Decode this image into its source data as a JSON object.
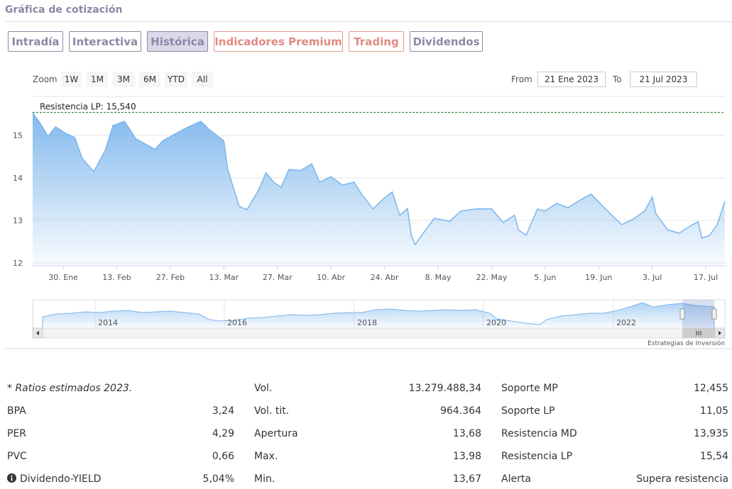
{
  "header": {
    "title": "Gráfica de cotización"
  },
  "tabs": [
    "Intradía",
    "Interactiva",
    "Histórica",
    "Indicadores Premium",
    "Trading",
    "Dividendos"
  ],
  "zoom": {
    "label": "Zoom",
    "buttons": [
      "1W",
      "1M",
      "3M",
      "6M",
      "YTD",
      "All"
    ],
    "active": "6M"
  },
  "range": {
    "from_label": "From",
    "from": "21 Ene 2023",
    "to_label": "To",
    "to": "21 Jul 2023"
  },
  "chart_data": {
    "type": "area",
    "x": [
      "2023-01-22",
      "2023-01-24",
      "2023-01-26",
      "2023-01-28",
      "2023-01-31",
      "2023-02-02",
      "2023-02-04",
      "2023-02-07",
      "2023-02-10",
      "2023-02-12",
      "2023-02-15",
      "2023-02-18",
      "2023-02-23",
      "2023-02-25",
      "2023-03-03",
      "2023-03-07",
      "2023-03-09",
      "2023-03-13",
      "2023-03-14",
      "2023-03-17",
      "2023-03-19",
      "2023-03-22",
      "2023-03-24",
      "2023-03-26",
      "2023-03-28",
      "2023-03-30",
      "2023-04-02",
      "2023-04-05",
      "2023-04-07",
      "2023-04-10",
      "2023-04-13",
      "2023-04-16",
      "2023-04-18",
      "2023-04-21",
      "2023-04-24",
      "2023-04-26",
      "2023-04-28",
      "2023-04-30",
      "2023-05-01",
      "2023-05-02",
      "2023-05-06",
      "2023-05-07",
      "2023-05-11",
      "2023-05-14",
      "2023-05-18",
      "2023-05-22",
      "2023-05-25",
      "2023-05-28",
      "2023-05-29",
      "2023-05-31",
      "2023-06-03",
      "2023-06-05",
      "2023-06-08",
      "2023-06-11",
      "2023-06-14",
      "2023-06-17",
      "2023-06-21",
      "2023-06-25",
      "2023-06-28",
      "2023-07-01",
      "2023-07-03",
      "2023-07-04",
      "2023-07-07",
      "2023-07-10",
      "2023-07-13",
      "2023-07-15",
      "2023-07-16",
      "2023-07-18",
      "2023-07-20",
      "2023-07-22"
    ],
    "series": [
      {
        "name": "Cotización",
        "color": "#7cb5ec",
        "values": [
          15.53,
          15.28,
          14.98,
          15.2,
          15.03,
          14.95,
          14.45,
          14.15,
          14.65,
          15.23,
          15.33,
          14.92,
          14.67,
          14.87,
          15.17,
          15.33,
          15.15,
          14.87,
          14.2,
          13.33,
          13.25,
          13.7,
          14.12,
          13.9,
          13.78,
          14.2,
          14.17,
          14.33,
          13.9,
          14.03,
          13.83,
          13.9,
          13.62,
          13.27,
          13.53,
          13.67,
          13.12,
          13.28,
          12.65,
          12.43,
          12.93,
          13.05,
          12.98,
          13.22,
          13.27,
          13.27,
          12.95,
          13.12,
          12.78,
          12.65,
          13.27,
          13.22,
          13.4,
          13.3,
          13.47,
          13.62,
          13.25,
          12.9,
          13.03,
          13.22,
          13.55,
          13.15,
          12.78,
          12.7,
          12.87,
          12.97,
          12.58,
          12.65,
          12.9,
          13.45
        ]
      }
    ],
    "xlim": [
      "2023-01-22",
      "2023-07-22"
    ],
    "xticks": [
      {
        "value": "2023-01-30",
        "label": "30. Ene"
      },
      {
        "value": "2023-02-13",
        "label": "13. Feb"
      },
      {
        "value": "2023-02-27",
        "label": "27. Feb"
      },
      {
        "value": "2023-03-13",
        "label": "13. Mar"
      },
      {
        "value": "2023-03-27",
        "label": "27. Mar"
      },
      {
        "value": "2023-04-10",
        "label": "10. Abr"
      },
      {
        "value": "2023-04-24",
        "label": "24. Abr"
      },
      {
        "value": "2023-05-08",
        "label": "8. May"
      },
      {
        "value": "2023-05-22",
        "label": "22. May"
      },
      {
        "value": "2023-06-05",
        "label": "5. Jun"
      },
      {
        "value": "2023-06-19",
        "label": "19. Jun"
      },
      {
        "value": "2023-07-03",
        "label": "3. Jul"
      },
      {
        "value": "2023-07-17",
        "label": "17. Jul"
      }
    ],
    "ylim": [
      12,
      16
    ],
    "yticks": [
      12,
      13,
      14,
      15
    ],
    "grid": true,
    "annotation": {
      "text": "Resistencia LP: 15,540",
      "value": 15.54,
      "color": "#1e6b1e"
    }
  },
  "navigator": {
    "labels": [
      "2014",
      "2016",
      "2018",
      "2020",
      "2022"
    ]
  },
  "credits": "Estrategias de Inversión",
  "ratios": [
    [
      {
        "label": "* Ratios estimados 2023."
      },
      {
        "label": "Vol.",
        "value": "13.279.488,34"
      },
      {
        "label": "Soporte MP",
        "value": "12,455"
      }
    ],
    [
      {
        "label": "BPA",
        "value": "3,24"
      },
      {
        "label": "Vol. tit.",
        "value": "964.364"
      },
      {
        "label": "Soporte LP",
        "value": "11,05"
      }
    ],
    [
      {
        "label": "PER",
        "value": "4,29"
      },
      {
        "label": "Apertura",
        "value": "13,68"
      },
      {
        "label": "Resistencia MD",
        "value": "13,935"
      }
    ],
    [
      {
        "label": "PVC",
        "value": "0,66"
      },
      {
        "label": "Max.",
        "value": "13,98"
      },
      {
        "label": "Resistencia LP",
        "value": "15,54"
      }
    ],
    [
      {
        "label": "Dividendo-YIELD",
        "value": "5,04%"
      },
      {
        "label": "Min.",
        "value": "13,67"
      },
      {
        "label": "Alerta",
        "value": "Supera resistencia"
      }
    ]
  ]
}
